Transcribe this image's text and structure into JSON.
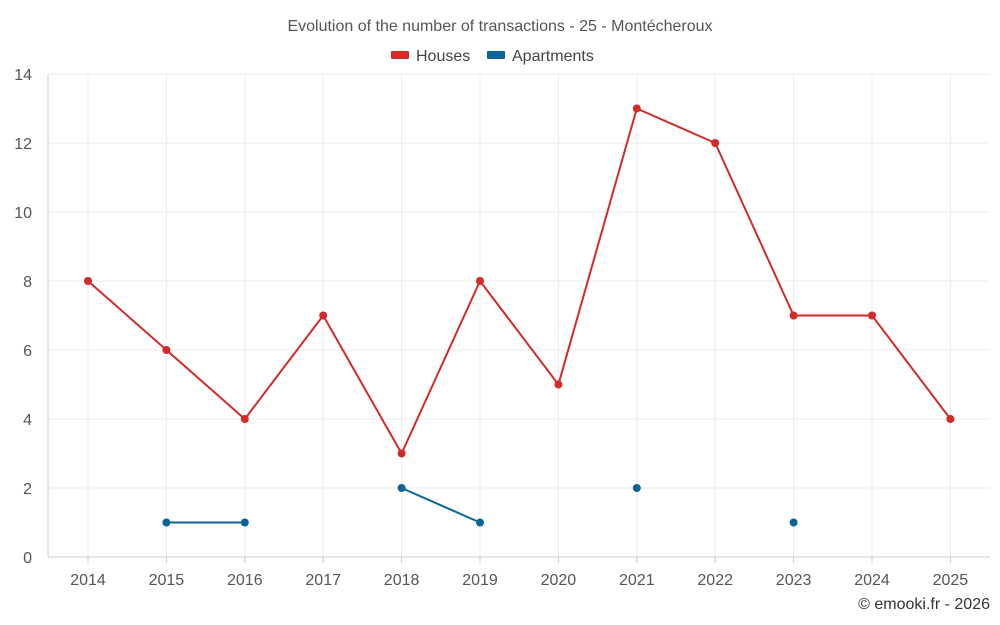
{
  "chart_data": {
    "type": "line",
    "title": "Evolution of the number of transactions - 25 - Montécheroux",
    "categories": [
      "2014",
      "2015",
      "2016",
      "2017",
      "2018",
      "2019",
      "2020",
      "2021",
      "2022",
      "2023",
      "2024",
      "2025"
    ],
    "ylim": [
      0,
      14
    ],
    "yticks": [
      0,
      2,
      4,
      6,
      8,
      10,
      12,
      14
    ],
    "grid": true,
    "legend_position": "top-center",
    "series": [
      {
        "name": "Houses",
        "color": "#d32a2a",
        "values": [
          8,
          6,
          4,
          7,
          3,
          8,
          5,
          13,
          12,
          7,
          7,
          4
        ]
      },
      {
        "name": "Apartments",
        "color": "#0a6496",
        "values": [
          null,
          1,
          1,
          null,
          2,
          1,
          null,
          2,
          null,
          1,
          null,
          null
        ]
      }
    ],
    "credit": "© emooki.fr - 2026"
  }
}
